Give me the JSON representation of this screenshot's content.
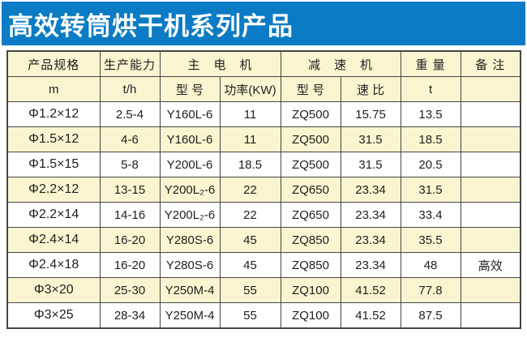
{
  "banner": {
    "title": "高效转筒烘干机系列产品",
    "bg_color": "#0a7bc4",
    "text_color": "#ffffff"
  },
  "table": {
    "group_headers": [
      {
        "label": "产品规格",
        "colspan": 1
      },
      {
        "label": "生产能力",
        "colspan": 1
      },
      {
        "label": "主　电　机",
        "colspan": 2
      },
      {
        "label": "减　速　机",
        "colspan": 2
      },
      {
        "label": "重 量",
        "colspan": 1
      },
      {
        "label": "备 注",
        "colspan": 1
      }
    ],
    "sub_headers": [
      "m",
      "t/h",
      "型 号",
      "功率(KW)",
      "型 号",
      "速 比",
      "t",
      ""
    ],
    "rows": [
      [
        "Φ1.2×12",
        "2.5-4",
        "Y160L-6",
        "11",
        "ZQ500",
        "15.75",
        "13.5",
        ""
      ],
      [
        "Φ1.5×12",
        "4-6",
        "Y160L-6",
        "11",
        "ZQ500",
        "31.5",
        "18.5",
        ""
      ],
      [
        "Φ1.5×15",
        "5-8",
        "Y200L-6",
        "18.5",
        "ZQ500",
        "31.5",
        "20.5",
        ""
      ],
      [
        "Φ2.2×12",
        "13-15",
        "Y200L₂-6",
        "22",
        "ZQ650",
        "23.34",
        "31.5",
        ""
      ],
      [
        "Φ2.2×14",
        "14-16",
        "Y200L₂-6",
        "22",
        "ZQ650",
        "23.34",
        "33.4",
        ""
      ],
      [
        "Φ2.4×14",
        "16-20",
        "Y280S-6",
        "45",
        "ZQ850",
        "23.34",
        "35.5",
        ""
      ],
      [
        "Φ2.4×18",
        "16-20",
        "Y280S-6",
        "45",
        "ZQ850",
        "23.34",
        "48",
        "高效"
      ],
      [
        "Φ3×20",
        "25-30",
        "Y250M-4",
        "55",
        "ZQ100",
        "41.52",
        "77.8",
        ""
      ],
      [
        "Φ3×25",
        "28-34",
        "Y250M-4",
        "55",
        "ZQ100",
        "41.52",
        "87.5",
        ""
      ]
    ],
    "colors": {
      "row_stripe": "#f9f5d0",
      "row_plain": "#ffffff",
      "border": "#454545"
    }
  }
}
